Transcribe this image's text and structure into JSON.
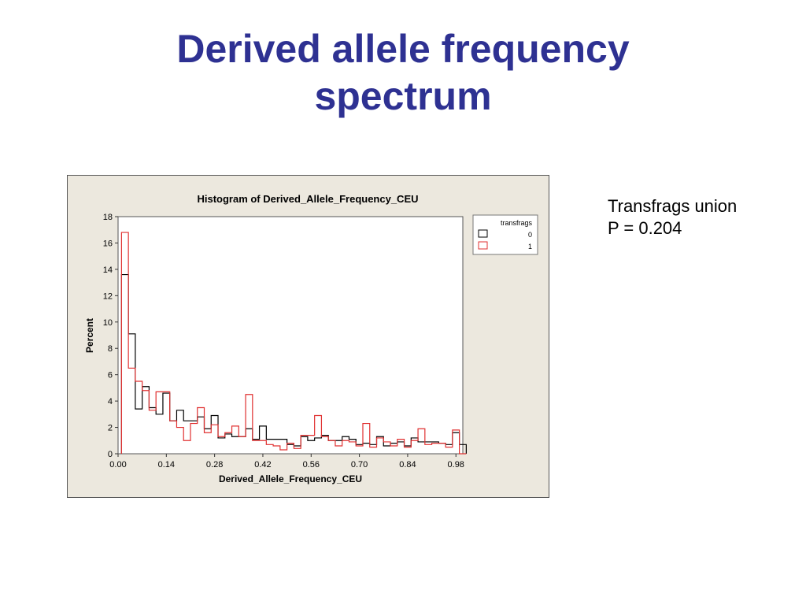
{
  "slide": {
    "title_line1": "Derived allele frequency",
    "title_line2": "spectrum",
    "side_line1": "Transfrags union",
    "side_line2": "P = 0.204"
  },
  "colors": {
    "title": "#2e3192",
    "series0": "#000000",
    "series1": "#e03030",
    "panel_bg": "#ece8de"
  },
  "chart_data": {
    "type": "bar",
    "title": "Histogram of Derived_Allele_Frequency_CEU",
    "xlabel": "Derived_Allele_Frequency_CEU",
    "ylabel": "Percent",
    "xlim": [
      0.0,
      1.0
    ],
    "ylim": [
      0,
      18
    ],
    "bin_width": 0.02,
    "bin_start": 0.01,
    "x_ticks": [
      "0.00",
      "0.14",
      "0.28",
      "0.42",
      "0.56",
      "0.70",
      "0.84",
      "0.98"
    ],
    "y_ticks": [
      "0",
      "2",
      "4",
      "6",
      "8",
      "10",
      "12",
      "14",
      "16",
      "18"
    ],
    "legend": {
      "title": "transfrags",
      "position": "right",
      "entries": [
        "0",
        "1"
      ]
    },
    "series": [
      {
        "name": "0",
        "values": [
          13.6,
          9.1,
          3.4,
          5.1,
          3.5,
          3.0,
          4.6,
          2.5,
          3.3,
          2.5,
          2.5,
          2.8,
          1.9,
          2.9,
          1.2,
          1.5,
          1.3,
          1.3,
          1.9,
          1.1,
          2.1,
          1.1,
          1.1,
          1.1,
          0.7,
          0.6,
          1.3,
          1.0,
          1.2,
          1.4,
          1.0,
          1.0,
          1.3,
          1.1,
          0.7,
          0.8,
          0.7,
          1.3,
          0.6,
          0.8,
          0.9,
          0.6,
          1.2,
          0.9,
          0.9,
          0.9,
          0.8,
          0.7,
          1.6,
          0.7
        ]
      },
      {
        "name": "1",
        "values": [
          16.8,
          6.5,
          5.5,
          4.8,
          3.3,
          4.7,
          4.7,
          2.5,
          2.0,
          1.0,
          2.3,
          3.5,
          1.6,
          2.2,
          1.3,
          1.6,
          2.1,
          1.3,
          4.5,
          1.0,
          1.0,
          0.7,
          0.6,
          0.3,
          0.8,
          0.4,
          1.4,
          1.4,
          2.9,
          1.3,
          1.0,
          0.6,
          1.0,
          0.9,
          0.6,
          2.3,
          0.5,
          1.2,
          0.9,
          0.6,
          1.1,
          0.5,
          1.0,
          1.9,
          0.7,
          0.8,
          0.8,
          0.5,
          1.8,
          0.0
        ]
      }
    ]
  }
}
